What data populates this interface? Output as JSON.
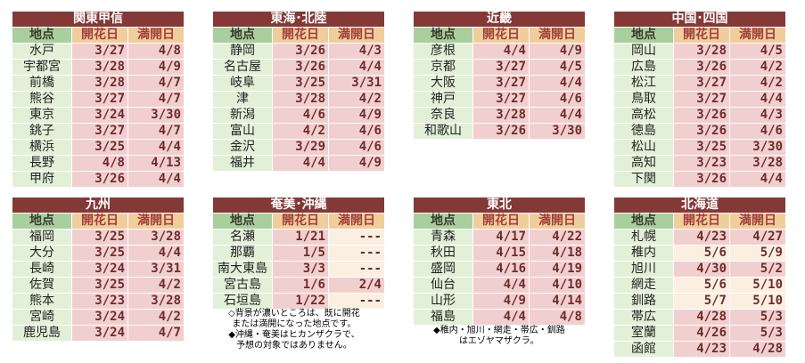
{
  "headers": {
    "place": "地点",
    "bloom": "開花日",
    "full": "満開日"
  },
  "colors": {
    "title": "#843936",
    "place_header": "#a9cf9f",
    "date_header": "#f0cd9d",
    "place_cell": "#e2f0d8",
    "reached": "#f2cfcf",
    "not_reached": "#fbefe2"
  },
  "regions": [
    {
      "title": "関東甲信",
      "rows": [
        [
          "水戸",
          "3/27",
          "4/8",
          1,
          1
        ],
        [
          "宇都宮",
          "3/28",
          "4/9",
          1,
          1
        ],
        [
          "前橋",
          "3/28",
          "4/7",
          1,
          1
        ],
        [
          "熊谷",
          "3/27",
          "4/7",
          1,
          1
        ],
        [
          "東京",
          "3/24",
          "3/30",
          1,
          1
        ],
        [
          "銚子",
          "3/27",
          "4/7",
          1,
          1
        ],
        [
          "横浜",
          "3/25",
          "4/4",
          1,
          1
        ],
        [
          "長野",
          "4/8",
          "4/13",
          1,
          1
        ],
        [
          "甲府",
          "3/26",
          "4/4",
          1,
          1
        ]
      ]
    },
    {
      "title": "東海･北陸",
      "rows": [
        [
          "静岡",
          "3/26",
          "4/3",
          1,
          1
        ],
        [
          "名古屋",
          "3/26",
          "4/4",
          1,
          1
        ],
        [
          "岐阜",
          "3/25",
          "3/31",
          1,
          1
        ],
        [
          "津",
          "3/28",
          "4/2",
          1,
          1
        ],
        [
          "新潟",
          "4/6",
          "4/9",
          1,
          1
        ],
        [
          "富山",
          "4/2",
          "4/6",
          1,
          1
        ],
        [
          "金沢",
          "3/29",
          "4/6",
          1,
          1
        ],
        [
          "福井",
          "4/4",
          "4/9",
          1,
          1
        ]
      ]
    },
    {
      "title": "近畿",
      "rows": [
        [
          "彦根",
          "4/4",
          "4/9",
          1,
          1
        ],
        [
          "京都",
          "3/27",
          "4/5",
          1,
          1
        ],
        [
          "大阪",
          "3/27",
          "4/4",
          1,
          1
        ],
        [
          "神戸",
          "3/27",
          "4/6",
          1,
          1
        ],
        [
          "奈良",
          "3/28",
          "4/4",
          1,
          1
        ],
        [
          "和歌山",
          "3/26",
          "3/30",
          1,
          1
        ]
      ]
    },
    {
      "title": "中国･四国",
      "rows": [
        [
          "岡山",
          "3/28",
          "4/5",
          1,
          1
        ],
        [
          "広島",
          "3/26",
          "4/2",
          1,
          1
        ],
        [
          "松江",
          "3/27",
          "4/2",
          1,
          1
        ],
        [
          "鳥取",
          "3/27",
          "4/4",
          1,
          1
        ],
        [
          "高松",
          "3/26",
          "4/3",
          1,
          1
        ],
        [
          "徳島",
          "3/26",
          "4/6",
          1,
          1
        ],
        [
          "松山",
          "3/25",
          "3/30",
          1,
          1
        ],
        [
          "高知",
          "3/23",
          "3/28",
          1,
          1
        ],
        [
          "下関",
          "3/26",
          "4/4",
          1,
          1
        ]
      ]
    },
    {
      "title": "九州",
      "rows": [
        [
          "福岡",
          "3/25",
          "3/28",
          1,
          1
        ],
        [
          "大分",
          "3/25",
          "4/4",
          1,
          1
        ],
        [
          "長崎",
          "3/24",
          "3/31",
          1,
          1
        ],
        [
          "佐賀",
          "3/25",
          "4/2",
          1,
          1
        ],
        [
          "熊本",
          "3/23",
          "3/28",
          1,
          1
        ],
        [
          "宮崎",
          "3/24",
          "4/2",
          1,
          1
        ],
        [
          "鹿児島",
          "3/24",
          "4/7",
          1,
          1
        ]
      ]
    },
    {
      "title": "奄美･沖縄",
      "rows": [
        [
          "名瀬",
          "1/21",
          "---",
          1,
          0
        ],
        [
          "那覇",
          "1/5",
          "---",
          1,
          0
        ],
        [
          "南大東島",
          "3/3",
          "---",
          1,
          0
        ],
        [
          "宮古島",
          "1/6",
          "2/4",
          1,
          1
        ],
        [
          "石垣島",
          "1/22",
          "---",
          1,
          0
        ]
      ]
    },
    {
      "title": "東北",
      "rows": [
        [
          "青森",
          "4/17",
          "4/22",
          1,
          1
        ],
        [
          "秋田",
          "4/15",
          "4/18",
          1,
          1
        ],
        [
          "盛岡",
          "4/16",
          "4/19",
          1,
          1
        ],
        [
          "仙台",
          "4/4",
          "4/10",
          1,
          1
        ],
        [
          "山形",
          "4/9",
          "4/14",
          1,
          1
        ],
        [
          "福島",
          "4/4",
          "4/8",
          1,
          1
        ]
      ]
    },
    {
      "title": "北海道",
      "rows": [
        [
          "札幌",
          "4/23",
          "4/27",
          1,
          1
        ],
        [
          "稚内",
          "5/6",
          "5/9",
          0,
          0
        ],
        [
          "旭川",
          "4/30",
          "5/2",
          1,
          1
        ],
        [
          "網走",
          "5/6",
          "5/10",
          0,
          0
        ],
        [
          "釧路",
          "5/7",
          "5/10",
          0,
          0
        ],
        [
          "帯広",
          "4/28",
          "5/3",
          1,
          1
        ],
        [
          "室蘭",
          "4/26",
          "5/3",
          1,
          1
        ],
        [
          "函館",
          "4/23",
          "4/28",
          1,
          1
        ]
      ]
    }
  ],
  "notes": {
    "legend": "◇背景が濃いところは、既に開花\nまたは満開になった地点です。\n◆沖縄・奄美はヒカンザクラで、\n予想の対象ではありません。",
    "tohoku": "◆稚内・旭川・網走・帯広・釧路\nはエゾヤマザクラ。"
  }
}
